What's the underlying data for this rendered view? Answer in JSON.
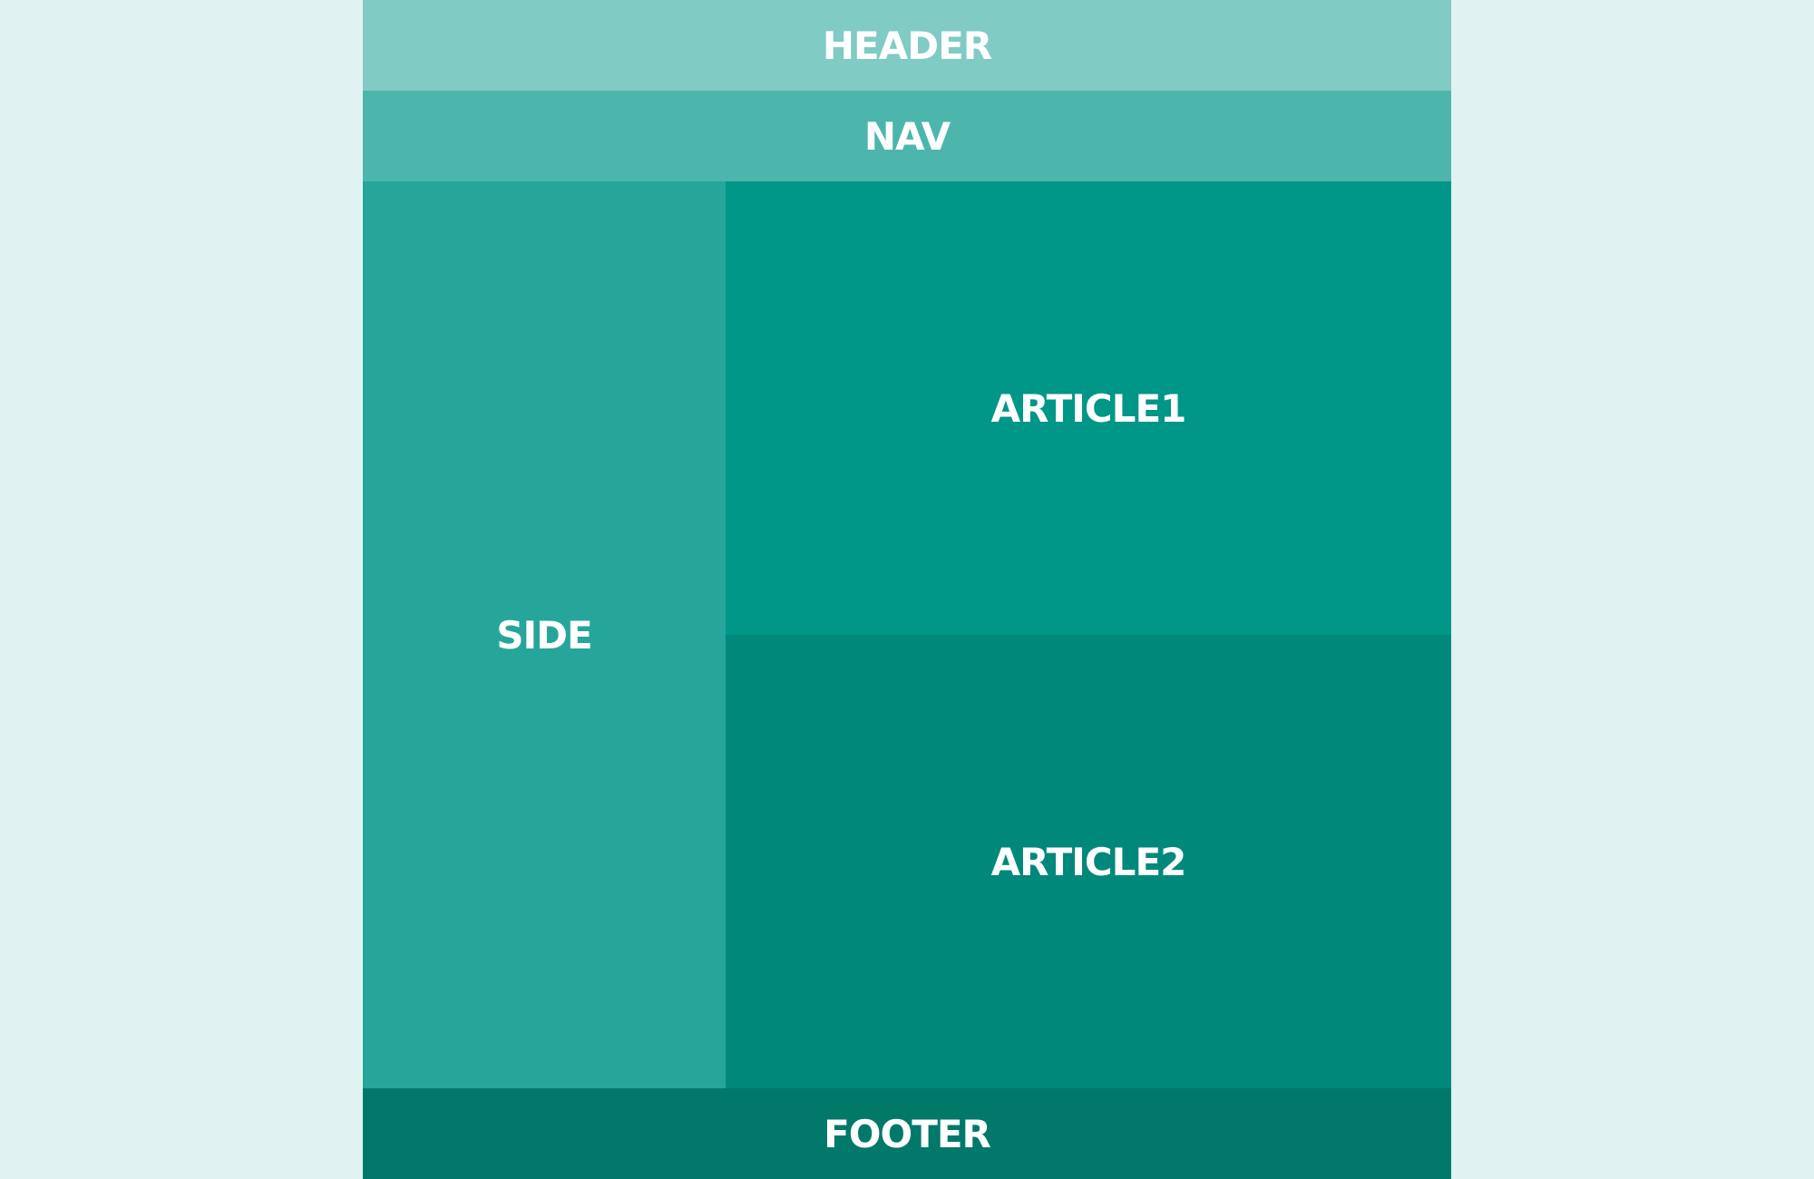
{
  "regions": {
    "header": "HEADER",
    "nav": "NAV",
    "side": "SIDE",
    "article1": "ARTICLE1",
    "article2": "ARTICLE2",
    "footer": "FOOTER"
  },
  "colors": {
    "background": "#e0f2f1",
    "header": "#80cbc4",
    "nav": "#4db6ac",
    "side": "#26a69a",
    "article1": "#009688",
    "article2": "#00897b",
    "footer": "#00796b",
    "text": "#ffffff"
  }
}
